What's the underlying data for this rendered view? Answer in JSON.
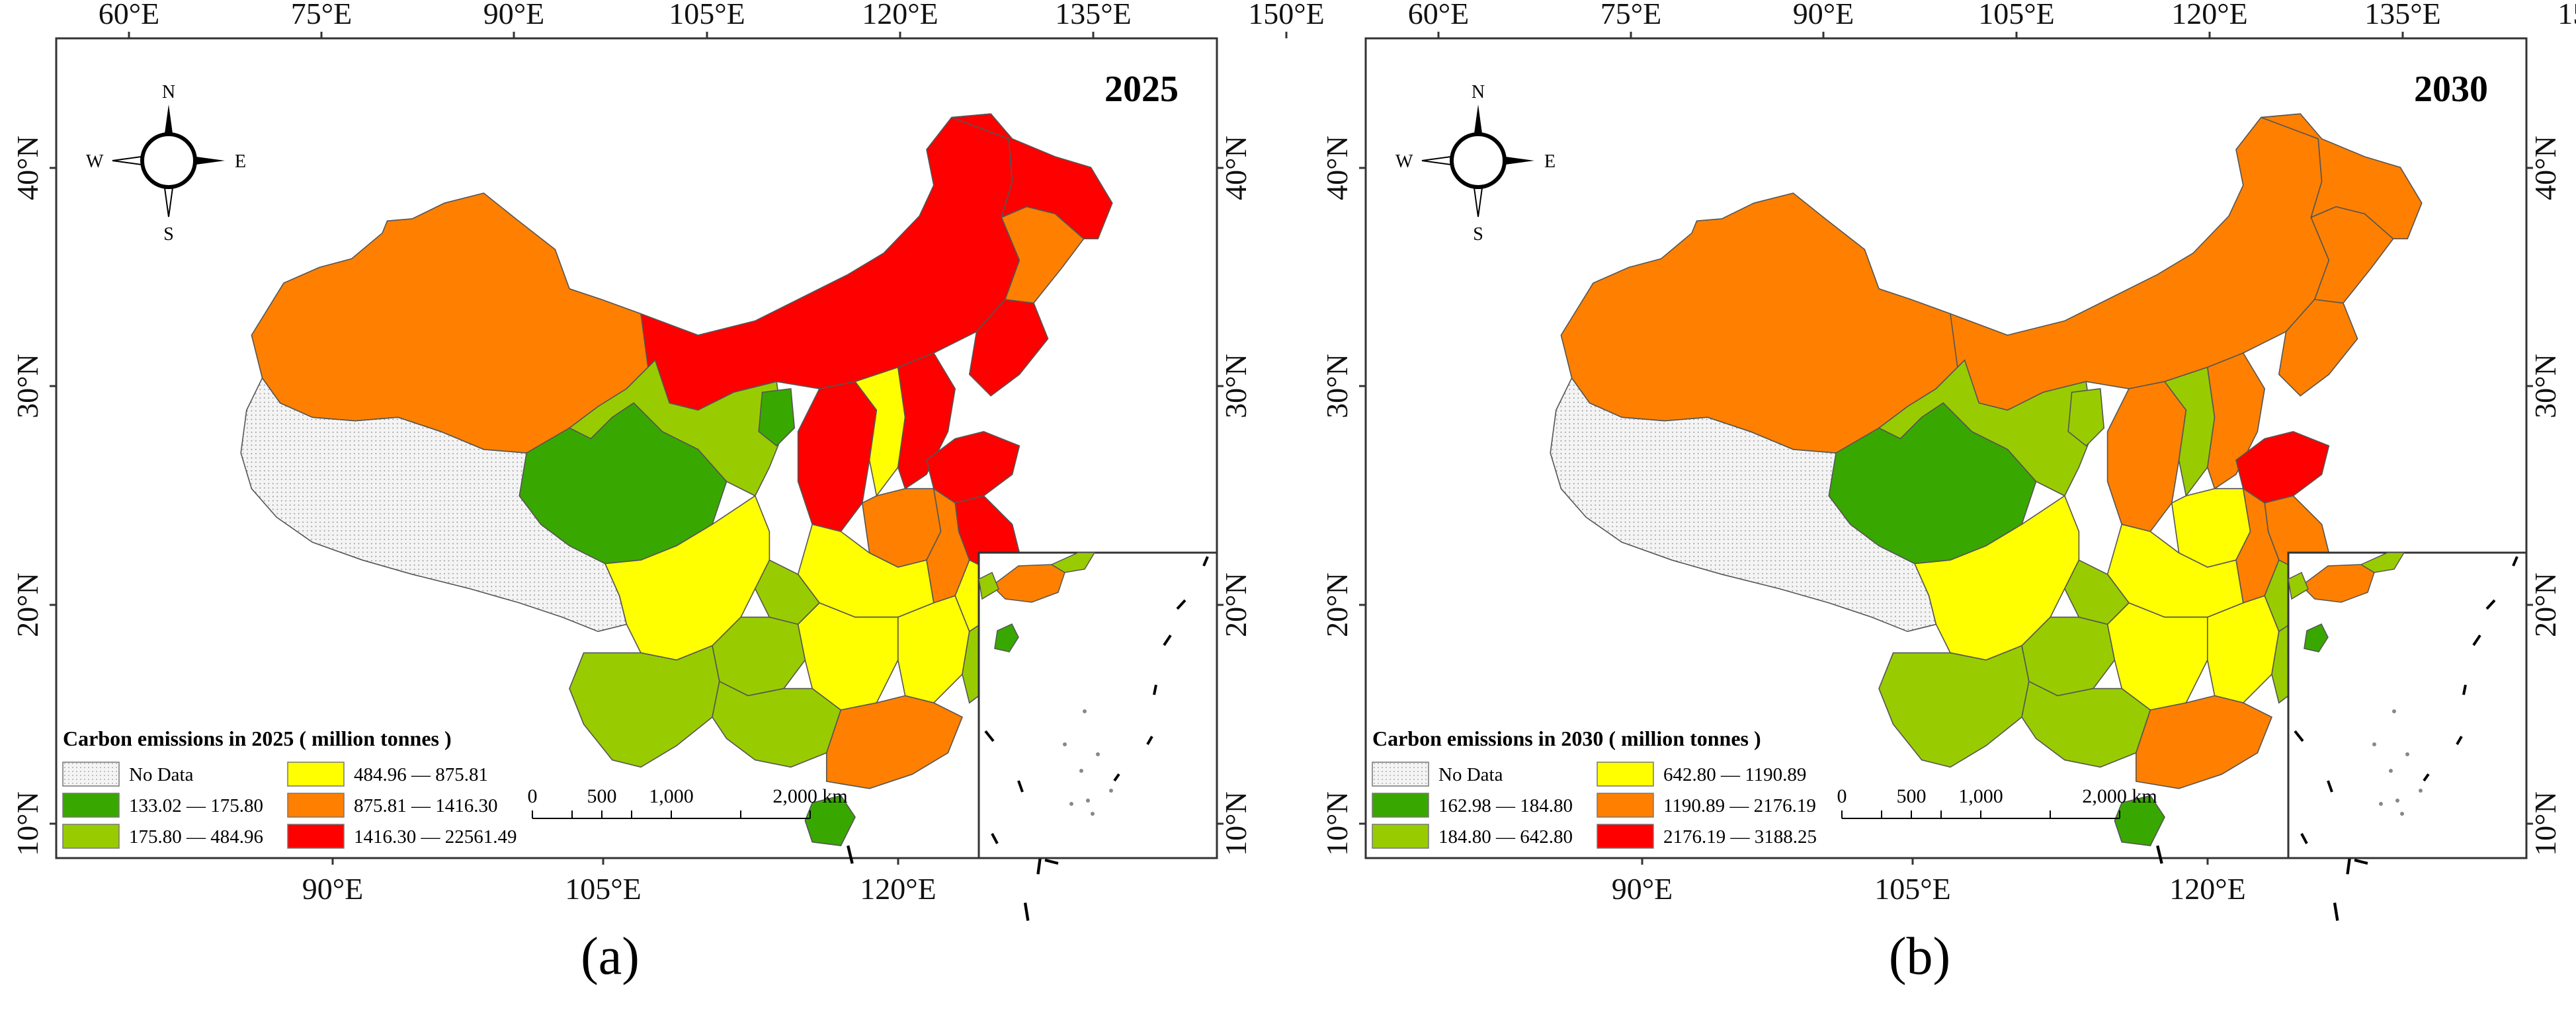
{
  "colors": {
    "no_data_fill": "#eeeeee",
    "dark_green": "#38a800",
    "light_green": "#98cc00",
    "yellow": "#ffff00",
    "orange": "#ff8000",
    "red": "#ff0000"
  },
  "panels": [
    {
      "label": "(a)",
      "year": "2025",
      "legend_title": "Carbon emissions in 2025 ( million tonnes )",
      "no_data_label": "No Data",
      "classes": [
        {
          "range": "133.02 — 175.80",
          "color": "#38a800"
        },
        {
          "range": "175.80 — 484.96",
          "color": "#98cc00"
        },
        {
          "range": "484.96 — 875.81",
          "color": "#ffff00"
        },
        {
          "range": "875.81 — 1416.30",
          "color": "#ff8000"
        },
        {
          "range": "1416.30 — 22561.49",
          "color": "#ff0000"
        }
      ],
      "region_classes": [
        3,
        4,
        1,
        0,
        0,
        4,
        2,
        4,
        4,
        3,
        4,
        4,
        3,
        4,
        3,
        2,
        1,
        1,
        2,
        1,
        1,
        2,
        2,
        1,
        1,
        2,
        3,
        0
      ]
    },
    {
      "label": "(b)",
      "year": "2030",
      "legend_title": "Carbon emissions in 2030 ( million tonnes )",
      "no_data_label": "No Data",
      "classes": [
        {
          "range": "162.98 — 184.80",
          "color": "#38a800"
        },
        {
          "range": "184.80 — 642.80",
          "color": "#98cc00"
        },
        {
          "range": "642.80 — 1190.89",
          "color": "#ffff00"
        },
        {
          "range": "1190.89 — 2176.19",
          "color": "#ff8000"
        },
        {
          "range": "2176.19 — 3188.25",
          "color": "#ff0000"
        }
      ],
      "region_classes": [
        3,
        3,
        1,
        0,
        1,
        3,
        1,
        3,
        3,
        3,
        3,
        4,
        2,
        3,
        3,
        2,
        1,
        1,
        2,
        1,
        1,
        2,
        2,
        1,
        1,
        1,
        3,
        0
      ]
    }
  ],
  "axes": {
    "top_ticks": [
      "60°E",
      "75°E",
      "90°E",
      "105°E",
      "120°E",
      "135°E",
      "150°E"
    ],
    "bottom_ticks": [
      "90°E",
      "105°E",
      "120°E"
    ],
    "lat_ticks": [
      "10°N",
      "20°N",
      "30°N",
      "40°N"
    ]
  },
  "compass": {
    "n": "N",
    "s": "S",
    "e": "E",
    "w": "W"
  },
  "scale_bar": {
    "labels": [
      "0",
      "500",
      "1,000",
      "2,000 km"
    ]
  }
}
